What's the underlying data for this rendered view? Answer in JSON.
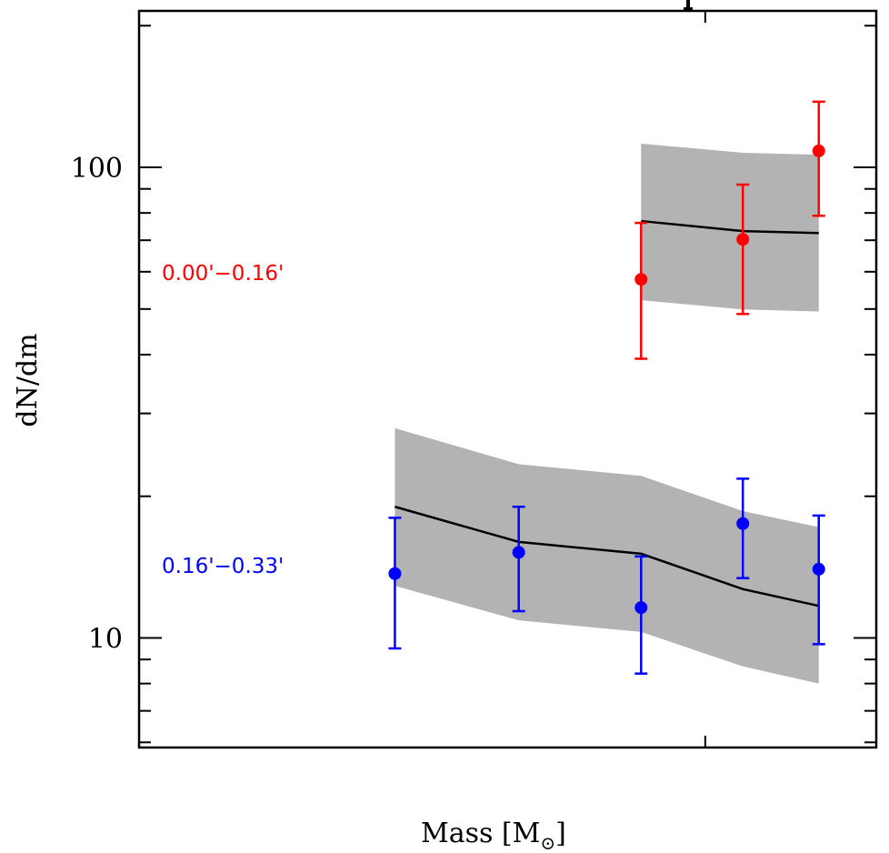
{
  "chart_data": {
    "type": "scatter",
    "title": "",
    "xlabel": "Mass [M⊙]",
    "xlabel_parts": {
      "main": "Mass [M",
      "subscript": "⊙",
      "close": "]"
    },
    "ylabel": "dN/dm",
    "y_scale": "log",
    "ylim": [
      5.85,
      215
    ],
    "y_major_ticks": [
      10,
      100
    ],
    "y_tick_labels": [
      "10",
      "100"
    ],
    "y_minor_ticks": [
      6,
      7,
      8,
      9,
      20,
      30,
      40,
      50,
      60,
      70,
      80,
      90,
      200
    ],
    "x_scale": "relative",
    "xlim": [
      0,
      1
    ],
    "x_ticks": [
      0.768
    ],
    "x_tick_labels": [],
    "grid": false,
    "band_color": "#b3b3b3",
    "model_line_color": "#000000",
    "series": [
      {
        "name": "0.00'−0.16'",
        "color": "#ff0000",
        "x": [
          0.681,
          0.819,
          0.922
        ],
        "y": [
          57.8,
          70.3,
          108.4
        ],
        "y_err_low": [
          39.2,
          48.8,
          78.9
        ],
        "y_err_high": [
          76.2,
          91.9,
          137.9
        ],
        "model": [
          76.9,
          73.2,
          72.5
        ],
        "model_band_low": [
          52.2,
          49.9,
          49.4
        ],
        "model_band_high": [
          112.3,
          107.4,
          106.4
        ],
        "annotation": "0.00'−0.16'"
      },
      {
        "name": "0.16'−0.33'",
        "color": "#0000ff",
        "x": [
          0.347,
          0.515,
          0.681,
          0.819,
          0.922
        ],
        "y": [
          13.7,
          15.2,
          11.6,
          17.5,
          14.0
        ],
        "y_err_low": [
          9.5,
          11.4,
          8.4,
          13.4,
          9.7
        ],
        "y_err_high": [
          18.0,
          19.0,
          14.9,
          21.8,
          18.2
        ],
        "model": [
          19.0,
          16.0,
          15.1,
          12.7,
          11.7
        ],
        "model_band_low": [
          12.9,
          10.9,
          10.3,
          8.7,
          8.0
        ],
        "model_band_high": [
          27.9,
          23.4,
          22.1,
          18.6,
          17.2
        ],
        "annotation": "0.16'−0.33'"
      }
    ]
  }
}
